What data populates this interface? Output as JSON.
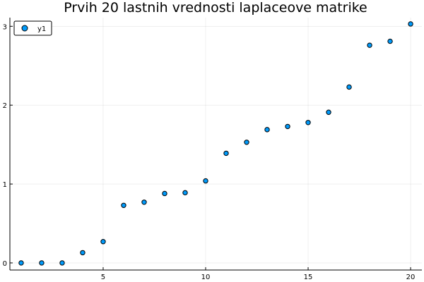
{
  "chart_data": {
    "type": "scatter",
    "title": "Prvih 20 lastnih vrednosti laplaceove matrike",
    "xlabel": "",
    "ylabel": "",
    "xlim": [
      0.45,
      20.55
    ],
    "ylim": [
      -0.09,
      3.11
    ],
    "xticks": [
      5,
      10,
      15,
      20
    ],
    "yticks": [
      0,
      1,
      2,
      3
    ],
    "grid": true,
    "legend": "top-left",
    "series": [
      {
        "name": "y1",
        "color": "#009AFA",
        "x": [
          1,
          2,
          3,
          4,
          5,
          6,
          7,
          8,
          9,
          10,
          11,
          12,
          13,
          14,
          15,
          16,
          17,
          18,
          19,
          20
        ],
        "y": [
          0.0,
          0.0,
          0.0,
          0.13,
          0.27,
          0.73,
          0.77,
          0.88,
          0.89,
          1.04,
          1.39,
          1.53,
          1.69,
          1.73,
          1.78,
          1.91,
          2.23,
          2.76,
          2.81,
          3.03
        ]
      }
    ]
  }
}
